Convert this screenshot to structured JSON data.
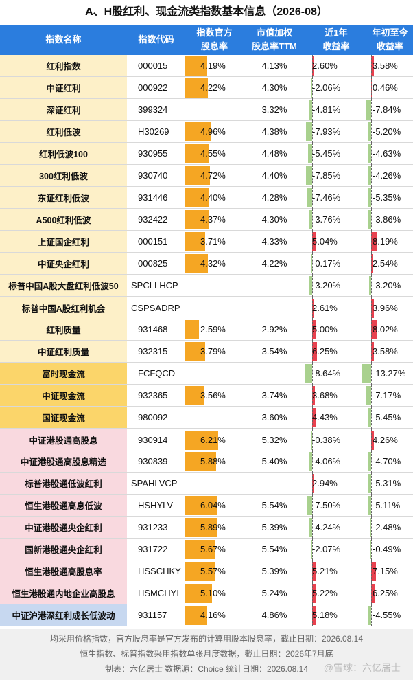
{
  "title": "A、H股红利、现金流类指数基本信息（2026-08）",
  "headers": {
    "name": "指数名称",
    "code": "指数代码",
    "official_yield": [
      "指数官方",
      "股息率"
    ],
    "ttm_yield": [
      "市值加权",
      "股息率TTM"
    ],
    "return_1y": [
      "近1年",
      "收益率"
    ],
    "return_ytd": [
      "年初至今",
      "收益率"
    ]
  },
  "colors": {
    "header_bg": "#2b7dde",
    "yield_bar": "#f5a623",
    "pos_bar": "#e8414f",
    "neg_bar": "#a9d18e",
    "name_yellow": "#fdf0c8",
    "name_gold": "#fbd56a",
    "name_pink": "#f9d9df",
    "name_blue": "#c7d8f0"
  },
  "rows": [
    {
      "name": "红利指数",
      "code": "000015",
      "official_yield": "4.19%",
      "ttm_yield": "4.13%",
      "return_1y": "2.60%",
      "return_ytd": "3.58%",
      "y": 4.19,
      "r1": 2.6,
      "ytd": 3.58,
      "group": "yellow"
    },
    {
      "name": "中证红利",
      "code": "000922",
      "official_yield": "4.22%",
      "ttm_yield": "4.30%",
      "return_1y": "-2.06%",
      "return_ytd": "0.46%",
      "y": 4.22,
      "r1": -2.06,
      "ytd": 0.46,
      "group": "yellow"
    },
    {
      "name": "深证红利",
      "code": "399324",
      "official_yield": "",
      "ttm_yield": "3.32%",
      "return_1y": "-4.81%",
      "return_ytd": "-7.84%",
      "y": null,
      "r1": -4.81,
      "ytd": -7.84,
      "group": "yellow"
    },
    {
      "name": "红利低波",
      "code": "H30269",
      "official_yield": "4.96%",
      "ttm_yield": "4.38%",
      "return_1y": "-7.93%",
      "return_ytd": "-5.20%",
      "y": 4.96,
      "r1": -7.93,
      "ytd": -5.2,
      "group": "yellow"
    },
    {
      "name": "红利低波100",
      "code": "930955",
      "official_yield": "4.55%",
      "ttm_yield": "4.48%",
      "return_1y": "-5.45%",
      "return_ytd": "-4.63%",
      "y": 4.55,
      "r1": -5.45,
      "ytd": -4.63,
      "group": "yellow"
    },
    {
      "name": "300红利低波",
      "code": "930740",
      "official_yield": "4.72%",
      "ttm_yield": "4.40%",
      "return_1y": "-7.85%",
      "return_ytd": "-4.26%",
      "y": 4.72,
      "r1": -7.85,
      "ytd": -4.26,
      "group": "yellow"
    },
    {
      "name": "东证红利低波",
      "code": "931446",
      "official_yield": "4.40%",
      "ttm_yield": "4.28%",
      "return_1y": "-7.46%",
      "return_ytd": "-5.35%",
      "y": 4.4,
      "r1": -7.46,
      "ytd": -5.35,
      "group": "yellow"
    },
    {
      "name": "A500红利低波",
      "code": "932422",
      "official_yield": "4.37%",
      "ttm_yield": "4.30%",
      "return_1y": "-3.76%",
      "return_ytd": "-3.86%",
      "y": 4.37,
      "r1": -3.76,
      "ytd": -3.86,
      "group": "yellow"
    },
    {
      "name": "上证国企红利",
      "code": "000151",
      "official_yield": "3.71%",
      "ttm_yield": "4.33%",
      "return_1y": "5.04%",
      "return_ytd": "8.19%",
      "y": 3.71,
      "r1": 5.04,
      "ytd": 8.19,
      "group": "yellow"
    },
    {
      "name": "中证央企红利",
      "code": "000825",
      "official_yield": "4.32%",
      "ttm_yield": "4.22%",
      "return_1y": "-0.17%",
      "return_ytd": "2.54%",
      "y": 4.32,
      "r1": -0.17,
      "ytd": 2.54,
      "group": "yellow"
    },
    {
      "name": "标普中国A股大盘红利低波50",
      "code": "SPCLLHCP",
      "official_yield": "",
      "ttm_yield": "",
      "return_1y": "-3.20%",
      "return_ytd": "-3.20%",
      "y": null,
      "r1": -3.2,
      "ytd": -3.2,
      "group": "yellow",
      "codeLeft": true
    },
    {
      "name": "标普中国A股红利机会",
      "code": "CSPSADRP",
      "official_yield": "",
      "ttm_yield": "",
      "return_1y": "2.61%",
      "return_ytd": "3.96%",
      "y": null,
      "r1": 2.61,
      "ytd": 3.96,
      "group": "yellow",
      "sep": true,
      "codeLeft": true
    },
    {
      "name": "红利质量",
      "code": "931468",
      "official_yield": "2.59%",
      "ttm_yield": "2.92%",
      "return_1y": "5.00%",
      "return_ytd": "8.02%",
      "y": 2.59,
      "r1": 5.0,
      "ytd": 8.02,
      "group": "yellow"
    },
    {
      "name": "中证红利质量",
      "code": "932315",
      "official_yield": "3.79%",
      "ttm_yield": "3.54%",
      "return_1y": "6.25%",
      "return_ytd": "3.58%",
      "y": 3.79,
      "r1": 6.25,
      "ytd": 3.58,
      "group": "yellow"
    },
    {
      "name": "富时现金流",
      "code": "FCFQCD",
      "official_yield": "",
      "ttm_yield": "",
      "return_1y": "-8.64%",
      "return_ytd": "-13.27%",
      "y": null,
      "r1": -8.64,
      "ytd": -13.27,
      "group": "gold"
    },
    {
      "name": "中证现金流",
      "code": "932365",
      "official_yield": "3.56%",
      "ttm_yield": "3.74%",
      "return_1y": "3.68%",
      "return_ytd": "-7.17%",
      "y": 3.56,
      "r1": 3.68,
      "ytd": -7.17,
      "group": "gold"
    },
    {
      "name": "国证现金流",
      "code": "980092",
      "official_yield": "",
      "ttm_yield": "3.60%",
      "return_1y": "4.43%",
      "return_ytd": "-5.45%",
      "y": null,
      "r1": 4.43,
      "ytd": -5.45,
      "group": "gold"
    },
    {
      "name": "中证港股通高股息",
      "code": "930914",
      "official_yield": "6.21%",
      "ttm_yield": "5.32%",
      "return_1y": "-0.38%",
      "return_ytd": "4.26%",
      "y": 6.21,
      "r1": -0.38,
      "ytd": 4.26,
      "group": "pink",
      "sep": true
    },
    {
      "name": "中证港股通高股息精选",
      "code": "930839",
      "official_yield": "5.88%",
      "ttm_yield": "5.40%",
      "return_1y": "-4.06%",
      "return_ytd": "-4.70%",
      "y": 5.88,
      "r1": -4.06,
      "ytd": -4.7,
      "group": "pink"
    },
    {
      "name": "标普港股通低波红利",
      "code": "SPAHLVCP",
      "official_yield": "",
      "ttm_yield": "",
      "return_1y": "2.94%",
      "return_ytd": "-5.31%",
      "y": null,
      "r1": 2.94,
      "ytd": -5.31,
      "group": "pink",
      "codeLeft": true
    },
    {
      "name": "恒生港股通高息低波",
      "code": "HSHYLV",
      "official_yield": "6.04%",
      "ttm_yield": "5.54%",
      "return_1y": "-7.50%",
      "return_ytd": "-5.11%",
      "y": 6.04,
      "r1": -7.5,
      "ytd": -5.11,
      "group": "pink"
    },
    {
      "name": "中证港股通央企红利",
      "code": "931233",
      "official_yield": "5.89%",
      "ttm_yield": "5.39%",
      "return_1y": "-4.24%",
      "return_ytd": "-2.48%",
      "y": 5.89,
      "r1": -4.24,
      "ytd": -2.48,
      "group": "pink"
    },
    {
      "name": "国新港股通央企红利",
      "code": "931722",
      "official_yield": "5.67%",
      "ttm_yield": "5.54%",
      "return_1y": "-2.07%",
      "return_ytd": "-0.49%",
      "y": 5.67,
      "r1": -2.07,
      "ytd": -0.49,
      "group": "pink"
    },
    {
      "name": "恒生港股通高股息率",
      "code": "HSSCHKY",
      "official_yield": "5.57%",
      "ttm_yield": "5.39%",
      "return_1y": "5.21%",
      "return_ytd": "7.15%",
      "y": 5.57,
      "r1": 5.21,
      "ytd": 7.15,
      "group": "pink"
    },
    {
      "name": "恒生港股通内地企业高股息",
      "code": "HSMCHYI",
      "official_yield": "5.10%",
      "ttm_yield": "5.24%",
      "return_1y": "5.22%",
      "return_ytd": "6.25%",
      "y": 5.1,
      "r1": 5.22,
      "ytd": 6.25,
      "group": "pink"
    },
    {
      "name": "中证沪港深红利成长低波动",
      "code": "931157",
      "official_yield": "4.16%",
      "ttm_yield": "4.86%",
      "return_1y": "5.18%",
      "return_ytd": "-4.55%",
      "y": 4.16,
      "r1": 5.18,
      "ytd": -4.55,
      "group": "blue"
    }
  ],
  "footer": {
    "line1": "均采用价格指数，官方股息率是官方发布的计算用股本股息率，截止日期：2026.08.14",
    "line2": "恒生指数、标普指数采用指数单张月度数据，截止日期：2026年7月底",
    "line3": "制表：六亿居士 数据源：Choice 统计日期：2026.08.14",
    "watermark": "@雪球：六亿居士"
  }
}
